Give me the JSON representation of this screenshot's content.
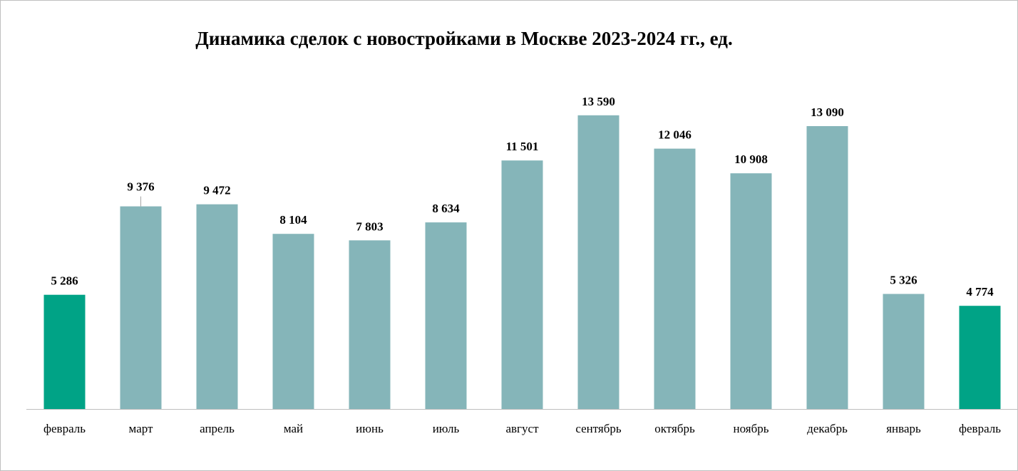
{
  "chart_data": {
    "type": "bar",
    "title": "Динамика сделок с новостройками в Москве 2023-2024 гг., ед.",
    "categories": [
      "февраль",
      "март",
      "апрель",
      "май",
      "июнь",
      "июль",
      "август",
      "сентябрь",
      "октябрь",
      "ноябрь",
      "декабрь",
      "январь",
      "февраль"
    ],
    "values": [
      5286,
      9376,
      9472,
      8104,
      7803,
      8634,
      11501,
      13590,
      12046,
      10908,
      13090,
      5326,
      4774
    ],
    "value_labels": [
      "5 286",
      "9 376",
      "9 472",
      "8 104",
      "7 803",
      "8 634",
      "11 501",
      "13 590",
      "12 046",
      "10 908",
      "13 090",
      "5 326",
      "4 774"
    ],
    "highlighted_indices": [
      0,
      12
    ],
    "xlabel": "",
    "ylabel": "",
    "ylim": [
      0,
      15000
    ],
    "grid": false,
    "legend": "none",
    "colors": {
      "bar": "#85b5b9",
      "highlight": "#00a386",
      "axis": "#bfbfbf"
    }
  }
}
